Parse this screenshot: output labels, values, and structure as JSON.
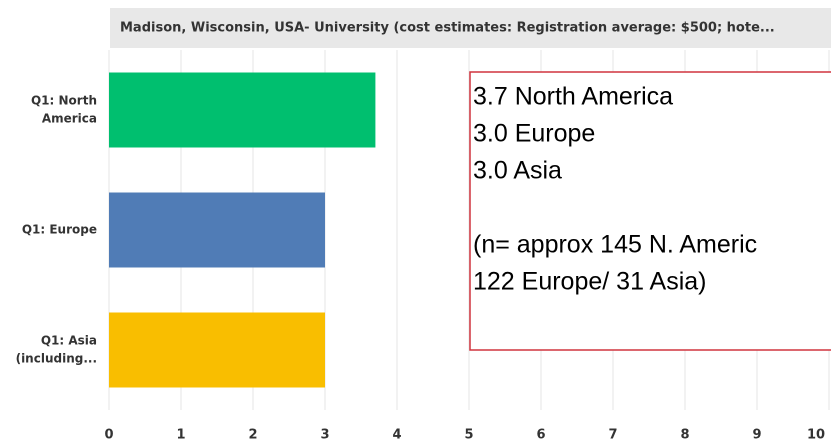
{
  "chart_data": {
    "type": "barh",
    "title": "Madison, Wisconsin, USA- University (cost estimates: Registration average: $500; hote...",
    "categories": [
      [
        "Q1: North",
        "America"
      ],
      [
        "Q1: Europe"
      ],
      [
        "Q1: Asia",
        "(including..."
      ]
    ],
    "values": [
      3.7,
      3.0,
      3.0
    ],
    "colors": [
      "#00bf6f",
      "#507cb6",
      "#f9be00"
    ],
    "xlim": [
      0,
      10
    ],
    "xticks": [
      0,
      1,
      2,
      3,
      4,
      5,
      6,
      7,
      8,
      9,
      10
    ],
    "grid": true,
    "annotation": [
      "3.7 North America",
      "3.0 Europe",
      "3.0 Asia",
      "(n= approx 145 N. Americ",
      "122 Europe/ 31 Asia)"
    ]
  }
}
